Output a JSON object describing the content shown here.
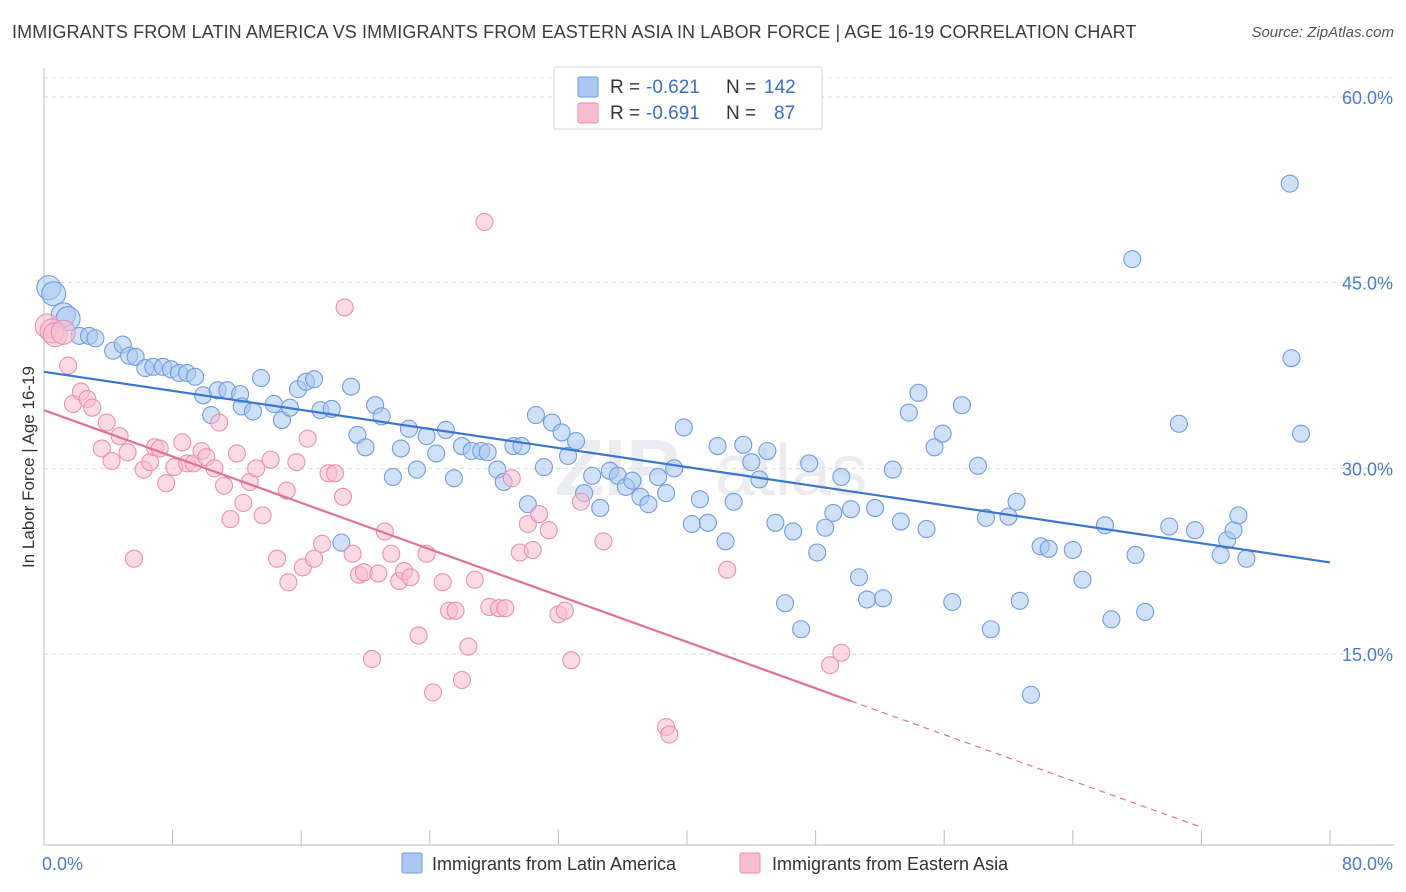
{
  "title": "IMMIGRANTS FROM LATIN AMERICA VS IMMIGRANTS FROM EASTERN ASIA IN LABOR FORCE | AGE 16-19 CORRELATION CHART",
  "source": "Source: ZipAtlas.com",
  "watermark": {
    "zip": "ZIP",
    "atlas": "atlas"
  },
  "chart_data": {
    "type": "scatter",
    "ylabel": "In Labor Force | Age 16-19",
    "xlim": [
      0,
      80
    ],
    "ylim": [
      0,
      60
    ],
    "x_tick_labels": [
      "0.0%",
      "80.0%"
    ],
    "y_ticks": [
      15,
      30,
      45,
      60
    ],
    "y_tick_labels": [
      "15.0%",
      "30.0%",
      "45.0%",
      "60.0%"
    ],
    "grid": true,
    "legend": [
      {
        "r_label": "R =",
        "r_value": "-0.621",
        "n_label": "N =",
        "n_value": "142",
        "color": "#aac8f0",
        "stroke": "#6f9de0"
      },
      {
        "r_label": "R =",
        "r_value": "-0.691",
        "n_label": "N =",
        "n_value": "87",
        "color": "#f7bcd0",
        "stroke": "#ea8fb0"
      }
    ],
    "series": [
      {
        "name": "Immigrants from Latin America",
        "color": "#aac8f0",
        "stroke": "#6f9de0",
        "line_color": "#3a76d0",
        "trend": {
          "x0": 0,
          "y0": 37.8,
          "x1": 80,
          "y1": 22.4
        },
        "points": [
          [
            0.3,
            44.6
          ],
          [
            0.6,
            44.1
          ],
          [
            1.2,
            42.4
          ],
          [
            1.5,
            42.1
          ],
          [
            2.2,
            40.7
          ],
          [
            2.8,
            40.7
          ],
          [
            3.2,
            40.5
          ],
          [
            4.3,
            39.5
          ],
          [
            4.9,
            40.0
          ],
          [
            5.3,
            39.1
          ],
          [
            5.7,
            39.0
          ],
          [
            6.3,
            38.1
          ],
          [
            6.8,
            38.2
          ],
          [
            7.4,
            38.2
          ],
          [
            7.9,
            38.0
          ],
          [
            8.4,
            37.7
          ],
          [
            8.9,
            37.7
          ],
          [
            9.4,
            37.4
          ],
          [
            9.9,
            35.9
          ],
          [
            10.4,
            34.3
          ],
          [
            10.8,
            36.3
          ],
          [
            11.4,
            36.3
          ],
          [
            12.2,
            36.0
          ],
          [
            12.3,
            35.0
          ],
          [
            13.0,
            34.6
          ],
          [
            13.5,
            37.3
          ],
          [
            14.3,
            35.2
          ],
          [
            14.8,
            33.9
          ],
          [
            15.3,
            34.9
          ],
          [
            15.8,
            36.4
          ],
          [
            16.3,
            37.0
          ],
          [
            16.8,
            37.2
          ],
          [
            17.2,
            34.7
          ],
          [
            17.9,
            34.8
          ],
          [
            18.5,
            24.0
          ],
          [
            19.1,
            36.6
          ],
          [
            19.5,
            32.7
          ],
          [
            20.0,
            31.7
          ],
          [
            20.6,
            35.1
          ],
          [
            21.0,
            34.2
          ],
          [
            21.7,
            29.3
          ],
          [
            22.2,
            31.6
          ],
          [
            22.7,
            33.2
          ],
          [
            23.2,
            29.9
          ],
          [
            23.8,
            32.6
          ],
          [
            24.4,
            31.2
          ],
          [
            25.0,
            33.1
          ],
          [
            25.5,
            29.2
          ],
          [
            26.0,
            31.8
          ],
          [
            26.6,
            31.4
          ],
          [
            27.2,
            31.4
          ],
          [
            27.6,
            31.3
          ],
          [
            28.2,
            29.9
          ],
          [
            28.6,
            28.9
          ],
          [
            29.2,
            31.8
          ],
          [
            29.7,
            31.8
          ],
          [
            30.1,
            27.1
          ],
          [
            30.6,
            34.3
          ],
          [
            31.1,
            30.1
          ],
          [
            31.6,
            33.7
          ],
          [
            32.2,
            32.9
          ],
          [
            32.6,
            31.0
          ],
          [
            33.1,
            32.2
          ],
          [
            33.6,
            28.0
          ],
          [
            34.1,
            29.4
          ],
          [
            34.6,
            26.8
          ],
          [
            35.2,
            29.8
          ],
          [
            35.7,
            29.4
          ],
          [
            36.2,
            28.5
          ],
          [
            36.6,
            29.0
          ],
          [
            37.1,
            27.7
          ],
          [
            37.6,
            27.1
          ],
          [
            38.2,
            29.3
          ],
          [
            38.7,
            28.0
          ],
          [
            39.2,
            30.0
          ],
          [
            39.8,
            33.3
          ],
          [
            40.3,
            25.5
          ],
          [
            40.8,
            27.5
          ],
          [
            41.3,
            25.6
          ],
          [
            41.9,
            31.8
          ],
          [
            42.4,
            24.1
          ],
          [
            42.9,
            27.3
          ],
          [
            43.5,
            31.9
          ],
          [
            44.0,
            30.5
          ],
          [
            44.5,
            29.1
          ],
          [
            45.0,
            31.4
          ],
          [
            45.5,
            25.6
          ],
          [
            46.1,
            19.1
          ],
          [
            46.6,
            24.9
          ],
          [
            47.1,
            17.0
          ],
          [
            47.6,
            30.4
          ],
          [
            48.1,
            23.2
          ],
          [
            48.6,
            25.2
          ],
          [
            49.1,
            26.4
          ],
          [
            49.6,
            29.3
          ],
          [
            50.2,
            26.7
          ],
          [
            50.7,
            21.2
          ],
          [
            51.2,
            19.4
          ],
          [
            51.7,
            26.8
          ],
          [
            52.2,
            19.5
          ],
          [
            52.8,
            29.9
          ],
          [
            53.3,
            25.7
          ],
          [
            53.8,
            34.5
          ],
          [
            54.4,
            36.1
          ],
          [
            54.9,
            25.1
          ],
          [
            55.4,
            31.7
          ],
          [
            55.9,
            32.8
          ],
          [
            56.5,
            19.2
          ],
          [
            57.1,
            35.1
          ],
          [
            58.1,
            30.2
          ],
          [
            58.6,
            26.0
          ],
          [
            58.9,
            17.0
          ],
          [
            60.0,
            26.1
          ],
          [
            60.5,
            27.3
          ],
          [
            60.7,
            19.3
          ],
          [
            61.4,
            11.7
          ],
          [
            62.0,
            23.7
          ],
          [
            62.5,
            23.5
          ],
          [
            64.0,
            23.4
          ],
          [
            64.6,
            21.0
          ],
          [
            66.0,
            25.4
          ],
          [
            66.4,
            17.8
          ],
          [
            67.7,
            46.9
          ],
          [
            67.9,
            23.0
          ],
          [
            68.5,
            18.4
          ],
          [
            70.0,
            25.3
          ],
          [
            70.6,
            33.6
          ],
          [
            71.6,
            25.0
          ],
          [
            73.2,
            23.0
          ],
          [
            73.6,
            24.2
          ],
          [
            74.0,
            25.0
          ],
          [
            74.3,
            26.2
          ],
          [
            74.8,
            22.7
          ],
          [
            77.5,
            53.0
          ],
          [
            77.6,
            38.9
          ],
          [
            78.2,
            32.8
          ]
        ]
      },
      {
        "name": "Immigrants from Eastern Asia",
        "color": "#f7bcd0",
        "stroke": "#ea8fb0",
        "line_color": "#e0709a",
        "trend": {
          "x0": 0,
          "y0": 34.7,
          "x1": 50.2,
          "y1": 11.2
        },
        "trend_dashed": {
          "x0": 50.2,
          "y0": 11.2,
          "x1": 72.0,
          "y1": 1.0
        },
        "points": [
          [
            0.2,
            41.5
          ],
          [
            0.5,
            41.1
          ],
          [
            0.7,
            40.8
          ],
          [
            1.5,
            38.3
          ],
          [
            1.8,
            35.2
          ],
          [
            2.3,
            36.2
          ],
          [
            2.7,
            35.6
          ],
          [
            3.0,
            34.9
          ],
          [
            3.6,
            31.6
          ],
          [
            3.9,
            33.7
          ],
          [
            4.2,
            30.6
          ],
          [
            4.7,
            32.6
          ],
          [
            5.2,
            31.3
          ],
          [
            5.6,
            22.7
          ],
          [
            6.2,
            29.9
          ],
          [
            6.6,
            30.5
          ],
          [
            6.9,
            31.7
          ],
          [
            7.2,
            31.6
          ],
          [
            7.6,
            28.8
          ],
          [
            8.1,
            30.1
          ],
          [
            8.6,
            32.1
          ],
          [
            8.9,
            30.4
          ],
          [
            9.3,
            30.4
          ],
          [
            9.8,
            31.4
          ],
          [
            10.1,
            30.9
          ],
          [
            10.6,
            30.0
          ],
          [
            10.9,
            33.7
          ],
          [
            11.2,
            28.6
          ],
          [
            11.6,
            25.9
          ],
          [
            12.0,
            31.2
          ],
          [
            12.4,
            27.2
          ],
          [
            12.8,
            28.9
          ],
          [
            13.2,
            30.0
          ],
          [
            13.6,
            26.2
          ],
          [
            14.1,
            30.7
          ],
          [
            14.5,
            22.7
          ],
          [
            15.1,
            28.2
          ],
          [
            15.2,
            20.8
          ],
          [
            15.7,
            30.5
          ],
          [
            16.1,
            22.0
          ],
          [
            16.4,
            32.4
          ],
          [
            16.8,
            22.7
          ],
          [
            17.3,
            23.9
          ],
          [
            17.7,
            29.6
          ],
          [
            18.1,
            29.6
          ],
          [
            18.6,
            27.7
          ],
          [
            18.7,
            43.0
          ],
          [
            19.2,
            23.1
          ],
          [
            19.6,
            21.4
          ],
          [
            19.9,
            21.6
          ],
          [
            20.4,
            14.6
          ],
          [
            20.8,
            21.5
          ],
          [
            21.2,
            24.9
          ],
          [
            21.6,
            23.1
          ],
          [
            22.1,
            20.9
          ],
          [
            22.4,
            21.7
          ],
          [
            22.8,
            21.2
          ],
          [
            23.3,
            16.5
          ],
          [
            23.8,
            23.1
          ],
          [
            24.2,
            11.9
          ],
          [
            24.8,
            20.8
          ],
          [
            25.2,
            18.5
          ],
          [
            25.6,
            18.5
          ],
          [
            26.0,
            12.9
          ],
          [
            26.4,
            15.6
          ],
          [
            26.8,
            21.0
          ],
          [
            27.4,
            49.9
          ],
          [
            27.7,
            18.8
          ],
          [
            28.3,
            18.7
          ],
          [
            28.7,
            18.7
          ],
          [
            29.1,
            29.2
          ],
          [
            29.6,
            23.2
          ],
          [
            30.1,
            25.5
          ],
          [
            30.4,
            23.4
          ],
          [
            30.8,
            26.3
          ],
          [
            31.4,
            25.0
          ],
          [
            32.0,
            18.2
          ],
          [
            32.4,
            18.5
          ],
          [
            32.8,
            14.5
          ],
          [
            33.4,
            27.3
          ],
          [
            34.8,
            24.1
          ],
          [
            38.7,
            9.1
          ],
          [
            38.9,
            8.5
          ],
          [
            42.5,
            21.8
          ],
          [
            48.9,
            14.1
          ],
          [
            49.6,
            15.1
          ],
          [
            1.2,
            41.0
          ]
        ]
      }
    ],
    "bottom_legend": [
      "Immigrants from Latin America",
      "Immigrants from Eastern Asia"
    ]
  }
}
